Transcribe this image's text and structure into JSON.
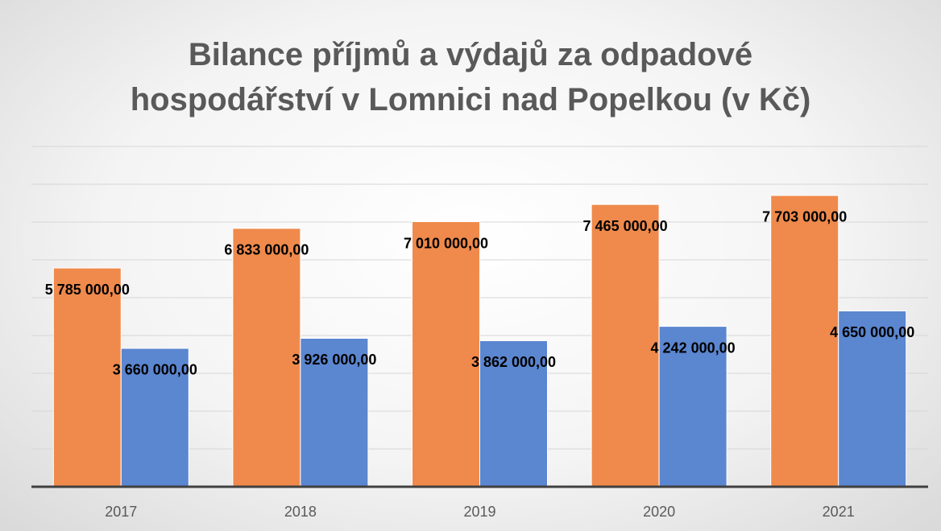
{
  "chart_data": {
    "type": "bar",
    "title": "Bilance příjmů a výdajů za odpadové\nhospodářství v Lomnici nad Popelkou (v Kč)",
    "categories": [
      "2017",
      "2018",
      "2019",
      "2020",
      "2021"
    ],
    "series": [
      {
        "color": "#ef8a4c",
        "values": [
          5785000,
          6833000,
          7010000,
          7465000,
          7703000
        ],
        "value_labels": [
          "5 785 000,00",
          "6 833 000,00",
          "7 010 000,00",
          "7 465 000,00",
          "7 703 000,00"
        ]
      },
      {
        "color": "#5b86d0",
        "values": [
          3660000,
          3926000,
          3862000,
          4242000,
          4650000
        ],
        "value_labels": [
          "3 660 000,00",
          "3 926 000,00",
          "3 862 000,00",
          "4 242 000,00",
          "4 650 000,00"
        ]
      }
    ],
    "ylim": [
      0,
      9000000
    ],
    "yticks": [
      0,
      1000000,
      2000000,
      3000000,
      4000000,
      5000000,
      6000000,
      7000000,
      8000000,
      9000000
    ],
    "grid": true
  }
}
